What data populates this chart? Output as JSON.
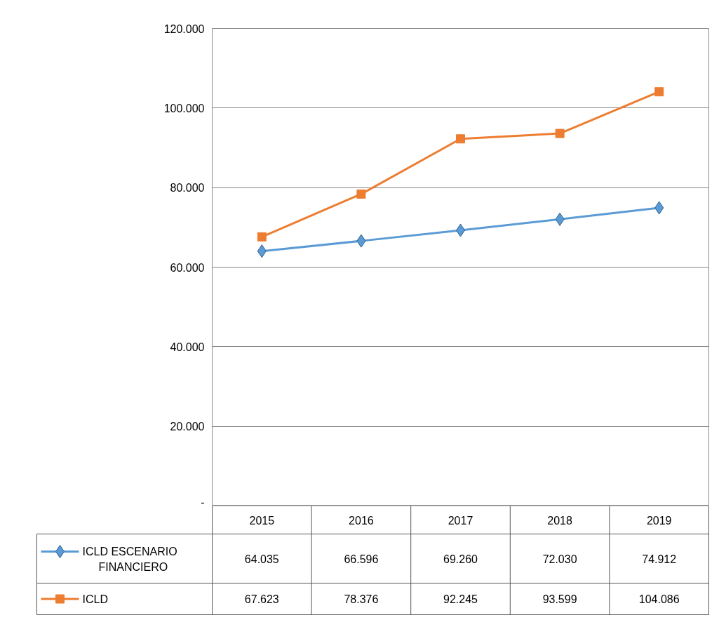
{
  "chart_data": {
    "type": "line",
    "categories": [
      "2015",
      "2016",
      "2017",
      "2018",
      "2019"
    ],
    "series": [
      {
        "name": "ICLD ESCENARIO FINANCIERO",
        "color": "#5b9bd5",
        "marker": "diamond",
        "values": [
          64035,
          66596,
          69260,
          72030,
          74912
        ],
        "value_labels": [
          "64.035",
          "66.596",
          "69.260",
          "72.030",
          "74.912"
        ]
      },
      {
        "name": "ICLD",
        "color": "#ed7d31",
        "marker": "square",
        "values": [
          67623,
          78376,
          92245,
          93599,
          104086
        ],
        "value_labels": [
          "67.623",
          "78.376",
          "92.245",
          "93.599",
          "104.086"
        ]
      }
    ],
    "ylim": [
      0,
      120000
    ],
    "yticks": [
      {
        "value": 0,
        "label": "-"
      },
      {
        "value": 20000,
        "label": "20.000"
      },
      {
        "value": 40000,
        "label": "40.000"
      },
      {
        "value": 60000,
        "label": "60.000"
      },
      {
        "value": 80000,
        "label": "80.000"
      },
      {
        "value": 100000,
        "label": "100.000"
      },
      {
        "value": 120000,
        "label": "120.000"
      }
    ],
    "grid": "y",
    "legend": "bottom",
    "line_style": "solid"
  }
}
